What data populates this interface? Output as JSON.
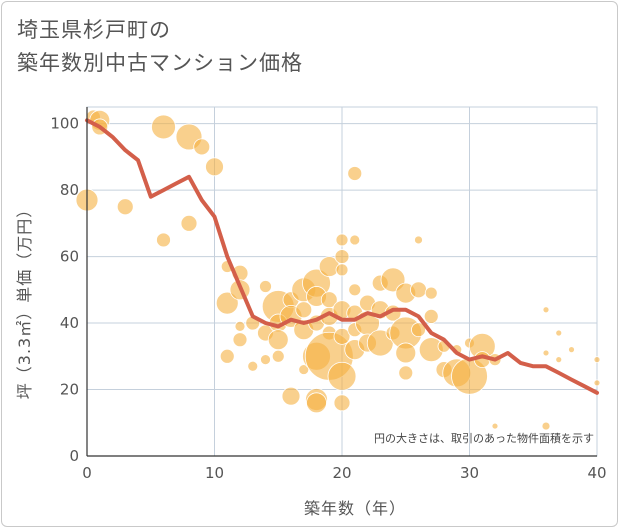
{
  "chart_data": {
    "type": "scatter",
    "title_lines": [
      "埼玉県杉戸町の",
      "築年数別中古マンション価格"
    ],
    "xlabel": "築年数（年）",
    "ylabel": "坪（3.3㎡）単価（万円）",
    "note": "円の大きさは、取引のあった物件面積を示す",
    "xlim": [
      0,
      40
    ],
    "ylim": [
      0,
      105
    ],
    "xticks": [
      0,
      10,
      20,
      30,
      40
    ],
    "yticks": [
      0,
      20,
      40,
      60,
      80,
      100
    ],
    "grid": true,
    "colors": {
      "bubble": "#f5b041",
      "line": "#d35f4a",
      "grid": "#c5d0dc",
      "axis": "#333333"
    },
    "series": [
      {
        "type": "line",
        "x": [
          0,
          1,
          2,
          3,
          4,
          5,
          6,
          7,
          8,
          9,
          10,
          11,
          12,
          13,
          14,
          15,
          16,
          17,
          18,
          19,
          20,
          21,
          22,
          23,
          24,
          25,
          26,
          27,
          28,
          29,
          30,
          31,
          32,
          33,
          34,
          35,
          36,
          37,
          38,
          39,
          40
        ],
        "y": [
          101,
          99,
          96,
          92,
          89,
          78,
          80,
          82,
          84,
          77,
          72,
          60,
          51,
          42,
          40,
          39,
          41,
          40,
          41,
          43,
          41,
          41,
          43,
          42,
          44,
          44,
          42,
          37,
          35,
          31,
          29,
          30,
          29,
          31,
          28,
          27,
          27,
          25,
          23,
          21,
          19
        ]
      },
      {
        "type": "scatter",
        "points": [
          {
            "x": 0,
            "y": 77,
            "r": 11
          },
          {
            "x": 0.5,
            "y": 102,
            "r": 7
          },
          {
            "x": 1,
            "y": 101,
            "r": 10
          },
          {
            "x": 1,
            "y": 99,
            "r": 8
          },
          {
            "x": 3,
            "y": 75,
            "r": 8
          },
          {
            "x": 6,
            "y": 99,
            "r": 12
          },
          {
            "x": 6,
            "y": 65,
            "r": 7
          },
          {
            "x": 8,
            "y": 96,
            "r": 13
          },
          {
            "x": 8,
            "y": 70,
            "r": 8
          },
          {
            "x": 9,
            "y": 93,
            "r": 8
          },
          {
            "x": 10,
            "y": 87,
            "r": 9
          },
          {
            "x": 11,
            "y": 57,
            "r": 6
          },
          {
            "x": 11,
            "y": 46,
            "r": 11
          },
          {
            "x": 11,
            "y": 30,
            "r": 7
          },
          {
            "x": 12,
            "y": 55,
            "r": 8
          },
          {
            "x": 12,
            "y": 50,
            "r": 10
          },
          {
            "x": 12,
            "y": 35,
            "r": 7
          },
          {
            "x": 12,
            "y": 39,
            "r": 5
          },
          {
            "x": 13,
            "y": 40,
            "r": 7
          },
          {
            "x": 13,
            "y": 27,
            "r": 5
          },
          {
            "x": 14,
            "y": 51,
            "r": 6
          },
          {
            "x": 14,
            "y": 37,
            "r": 8
          },
          {
            "x": 14,
            "y": 29,
            "r": 5
          },
          {
            "x": 15,
            "y": 45,
            "r": 16
          },
          {
            "x": 15,
            "y": 40,
            "r": 9
          },
          {
            "x": 15,
            "y": 35,
            "r": 10
          },
          {
            "x": 15,
            "y": 30,
            "r": 6
          },
          {
            "x": 16,
            "y": 47,
            "r": 8
          },
          {
            "x": 16,
            "y": 42,
            "r": 11
          },
          {
            "x": 16,
            "y": 18,
            "r": 9
          },
          {
            "x": 17,
            "y": 50,
            "r": 12
          },
          {
            "x": 17,
            "y": 44,
            "r": 8
          },
          {
            "x": 17,
            "y": 38,
            "r": 10
          },
          {
            "x": 17,
            "y": 26,
            "r": 5
          },
          {
            "x": 18,
            "y": 52,
            "r": 14
          },
          {
            "x": 18,
            "y": 48,
            "r": 10
          },
          {
            "x": 18,
            "y": 40,
            "r": 8
          },
          {
            "x": 18,
            "y": 30,
            "r": 14
          },
          {
            "x": 18,
            "y": 17,
            "r": 11
          },
          {
            "x": 18,
            "y": 16,
            "r": 10
          },
          {
            "x": 19,
            "y": 57,
            "r": 10
          },
          {
            "x": 19,
            "y": 47,
            "r": 8
          },
          {
            "x": 19,
            "y": 42,
            "r": 9
          },
          {
            "x": 19,
            "y": 37,
            "r": 7
          },
          {
            "x": 19,
            "y": 30,
            "r": 24
          },
          {
            "x": 20,
            "y": 65,
            "r": 6
          },
          {
            "x": 20,
            "y": 60,
            "r": 7
          },
          {
            "x": 20,
            "y": 56,
            "r": 6
          },
          {
            "x": 20,
            "y": 44,
            "r": 9
          },
          {
            "x": 20,
            "y": 36,
            "r": 8
          },
          {
            "x": 20,
            "y": 24,
            "r": 14
          },
          {
            "x": 20,
            "y": 16,
            "r": 8
          },
          {
            "x": 21,
            "y": 85,
            "r": 7
          },
          {
            "x": 21,
            "y": 65,
            "r": 5
          },
          {
            "x": 21,
            "y": 50,
            "r": 6
          },
          {
            "x": 21,
            "y": 43,
            "r": 8
          },
          {
            "x": 21,
            "y": 38,
            "r": 7
          },
          {
            "x": 21,
            "y": 32,
            "r": 10
          },
          {
            "x": 22,
            "y": 46,
            "r": 8
          },
          {
            "x": 22,
            "y": 40,
            "r": 12
          },
          {
            "x": 22,
            "y": 34,
            "r": 9
          },
          {
            "x": 23,
            "y": 52,
            "r": 8
          },
          {
            "x": 23,
            "y": 44,
            "r": 9
          },
          {
            "x": 23,
            "y": 34,
            "r": 13
          },
          {
            "x": 24,
            "y": 53,
            "r": 12
          },
          {
            "x": 24,
            "y": 43,
            "r": 8
          },
          {
            "x": 24,
            "y": 37,
            "r": 7
          },
          {
            "x": 25,
            "y": 49,
            "r": 10
          },
          {
            "x": 25,
            "y": 37,
            "r": 16
          },
          {
            "x": 25,
            "y": 31,
            "r": 10
          },
          {
            "x": 25,
            "y": 25,
            "r": 7
          },
          {
            "x": 26,
            "y": 65,
            "r": 4
          },
          {
            "x": 26,
            "y": 50,
            "r": 8
          },
          {
            "x": 26,
            "y": 38,
            "r": 7
          },
          {
            "x": 27,
            "y": 49,
            "r": 6
          },
          {
            "x": 27,
            "y": 42,
            "r": 7
          },
          {
            "x": 27,
            "y": 32,
            "r": 12
          },
          {
            "x": 28,
            "y": 33,
            "r": 6
          },
          {
            "x": 28,
            "y": 26,
            "r": 8
          },
          {
            "x": 29,
            "y": 32,
            "r": 5
          },
          {
            "x": 29,
            "y": 25,
            "r": 14
          },
          {
            "x": 30,
            "y": 24,
            "r": 18
          },
          {
            "x": 30,
            "y": 34,
            "r": 5
          },
          {
            "x": 31,
            "y": 33,
            "r": 13
          },
          {
            "x": 31,
            "y": 29,
            "r": 8
          },
          {
            "x": 32,
            "y": 9,
            "r": 3
          },
          {
            "x": 32,
            "y": 29,
            "r": 6
          },
          {
            "x": 36,
            "y": 44,
            "r": 3
          },
          {
            "x": 36,
            "y": 9,
            "r": 4
          },
          {
            "x": 36,
            "y": 31,
            "r": 3
          },
          {
            "x": 37,
            "y": 37,
            "r": 3
          },
          {
            "x": 37,
            "y": 29,
            "r": 3
          },
          {
            "x": 38,
            "y": 32,
            "r": 3
          },
          {
            "x": 40,
            "y": 29,
            "r": 3
          },
          {
            "x": 40,
            "y": 22,
            "r": 3
          }
        ]
      }
    ]
  }
}
